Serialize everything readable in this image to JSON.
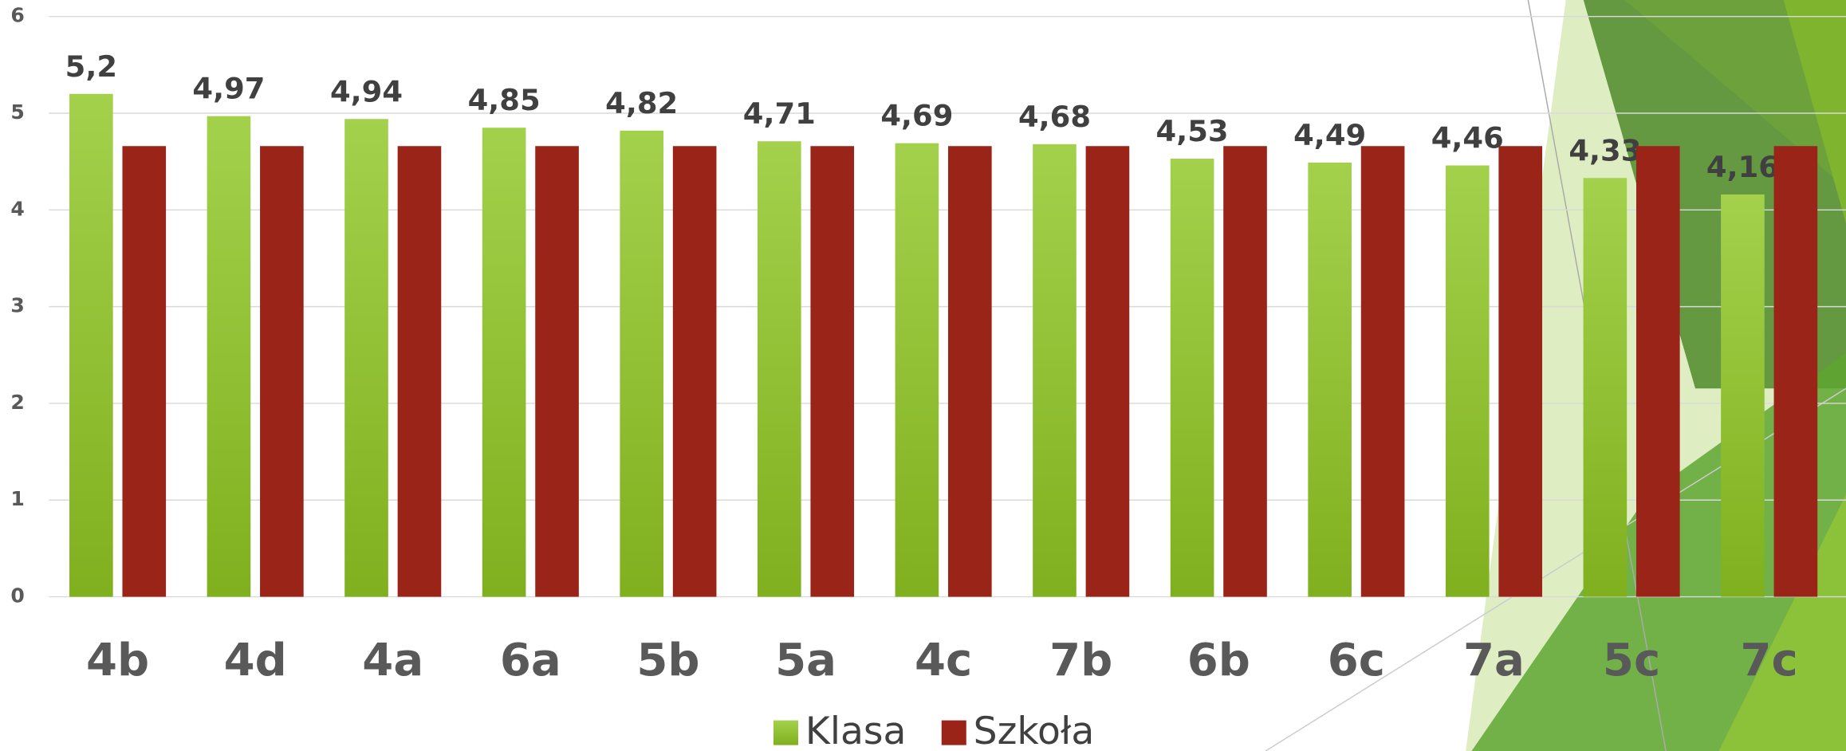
{
  "chart_data": {
    "type": "bar",
    "categories": [
      "4b",
      "4d",
      "4a",
      "6a",
      "5b",
      "5a",
      "4c",
      "7b",
      "6b",
      "6c",
      "7a",
      "5c",
      "7c"
    ],
    "series": [
      {
        "name": "Klasa",
        "color": "#8dbf2a",
        "values": [
          5.2,
          4.97,
          4.94,
          4.85,
          4.82,
          4.71,
          4.69,
          4.68,
          4.53,
          4.49,
          4.46,
          4.33,
          4.16
        ],
        "value_labels": [
          "5,2",
          "4,97",
          "4,94",
          "4,85",
          "4,82",
          "4,71",
          "4,69",
          "4,68",
          "4,53",
          "4,49",
          "4,46",
          "4,33",
          "4,16"
        ]
      },
      {
        "name": "Szkoła",
        "color": "#9a2418",
        "values": [
          4.66,
          4.66,
          4.66,
          4.66,
          4.66,
          4.66,
          4.66,
          4.66,
          4.66,
          4.66,
          4.66,
          4.66,
          4.66
        ]
      }
    ],
    "ylim": [
      0,
      6
    ],
    "yticks": [
      0,
      1,
      2,
      3,
      4,
      5,
      6
    ],
    "grid": true,
    "legend": "bottom"
  }
}
